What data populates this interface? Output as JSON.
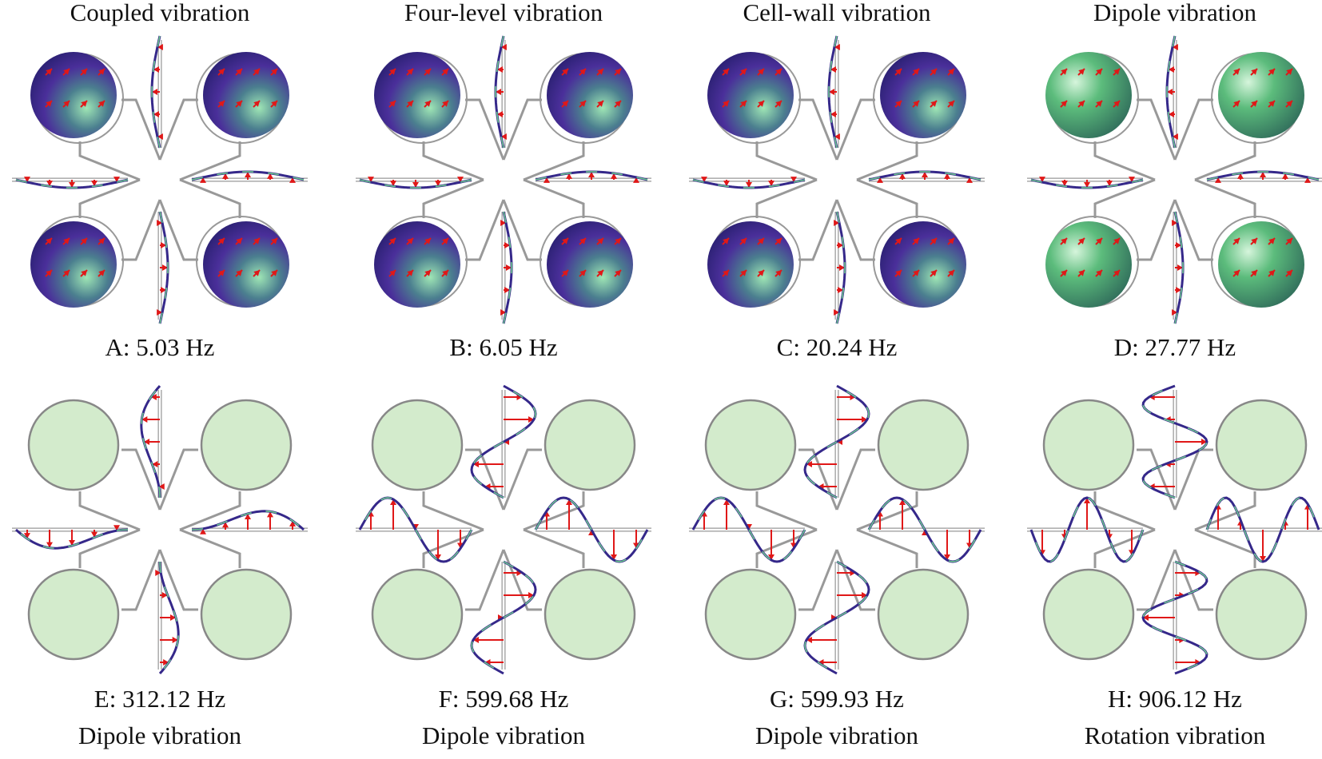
{
  "panels": [
    {
      "name": "Coupled vibration",
      "label": "A: 5.03 Hz"
    },
    {
      "name": "Four-level vibration",
      "label": "B: 6.05 Hz"
    },
    {
      "name": "Cell-wall vibration",
      "label": "C: 20.24 Hz"
    },
    {
      "name": "Dipole vibration",
      "label": "D: 27.77 Hz"
    },
    {
      "name": "Dipole vibration",
      "label": "E: 312.12 Hz"
    },
    {
      "name": "Dipole vibration",
      "label": "F: 599.68 Hz"
    },
    {
      "name": "Dipole vibration",
      "label": "G: 599.93 Hz"
    },
    {
      "name": "Rotation vibration",
      "label": "H: 906.12 Hz"
    }
  ]
}
